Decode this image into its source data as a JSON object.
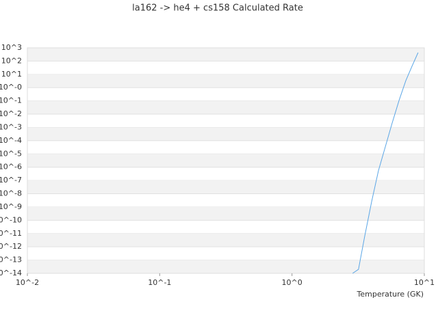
{
  "chart_data": {
    "type": "line",
    "title": "la162 -> he4 + cs158 Calculated Rate",
    "x_label": "Temperature (GK)",
    "x_scale": "log",
    "y_scale": "log",
    "grid": true,
    "xlim": [
      0.01,
      10
    ],
    "ylim": [
      1e-14,
      1000
    ],
    "xticks": [
      {
        "value": 0.01,
        "label": "10^-2"
      },
      {
        "value": 0.1,
        "label": "10^-1"
      },
      {
        "value": 1,
        "label": "10^0"
      },
      {
        "value": 10,
        "label": "10^1"
      }
    ],
    "yticks": [
      {
        "value": 1000,
        "label": "10^3"
      },
      {
        "value": 100,
        "label": "10^2"
      },
      {
        "value": 10,
        "label": "10^1"
      },
      {
        "value": 1,
        "label": "10^-0"
      },
      {
        "value": 0.1,
        "label": "10^-1"
      },
      {
        "value": 0.01,
        "label": "10^-2"
      },
      {
        "value": 0.001,
        "label": "10^-3"
      },
      {
        "value": 0.0001,
        "label": "10^-4"
      },
      {
        "value": 1e-05,
        "label": "10^-5"
      },
      {
        "value": 1e-06,
        "label": "10^-6"
      },
      {
        "value": 1e-07,
        "label": "10^-7"
      },
      {
        "value": 1e-08,
        "label": "10^-8"
      },
      {
        "value": 1e-09,
        "label": "10^-9"
      },
      {
        "value": 1e-10,
        "label": "10^-10"
      },
      {
        "value": 1e-11,
        "label": "10^-11"
      },
      {
        "value": 1e-12,
        "label": "10^-12"
      },
      {
        "value": 1e-13,
        "label": "10^-13"
      },
      {
        "value": 1e-14,
        "label": "10^-14"
      }
    ],
    "series": [
      {
        "color": "#5aa6e6",
        "x": [
          2.87,
          3.18,
          3.55,
          4.0,
          4.5,
          5.07,
          5.71,
          6.44,
          7.25,
          8.07,
          8.97
        ],
        "values": [
          1e-14,
          2e-14,
          6.8e-12,
          2.6e-09,
          5.4e-07,
          3.4e-05,
          0.0021,
          0.107,
          3.4,
          41,
          436
        ]
      }
    ]
  }
}
